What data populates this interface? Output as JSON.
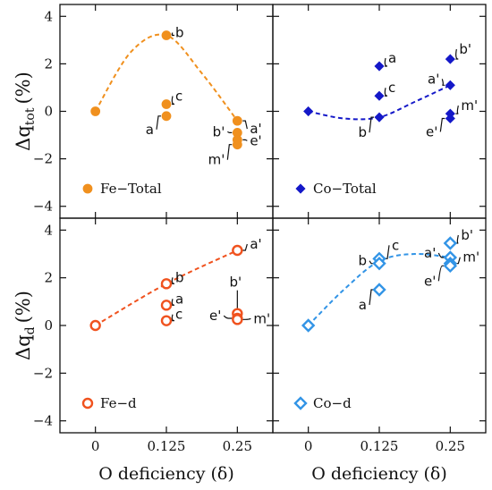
{
  "chart_data": {
    "type": "scatter",
    "xlabel": "O deficiency (δ)",
    "x_ticks": [
      "0",
      "0.125",
      "0.25"
    ],
    "x_tick_values": [
      0,
      0.125,
      0.25
    ],
    "xlim": [
      -0.0625,
      0.3125
    ],
    "rows": [
      {
        "ylabel_main": "Δq",
        "ylabel_sub": "tot",
        "ylabel_unit": "(%)",
        "ylim": [
          -4.5,
          4.5
        ],
        "y_ticks": [
          -4,
          -2,
          0,
          2,
          4
        ]
      },
      {
        "ylabel_main": "Δq",
        "ylabel_sub": "d",
        "ylabel_unit": "(%)",
        "ylim": [
          -4.5,
          4.5
        ],
        "y_ticks": [
          -4,
          -2,
          0,
          2,
          4
        ]
      }
    ],
    "panels": [
      {
        "id": "fe-total",
        "row": 0,
        "col": 0,
        "legend": "Fe−Total",
        "marker": "circle",
        "filled": true,
        "color": "#f0901e",
        "fit_curve": [
          [
            0,
            0
          ],
          [
            0.0625,
            2.5
          ],
          [
            0.125,
            3.2
          ],
          [
            0.1875,
            1.6
          ],
          [
            0.25,
            -0.4
          ]
        ],
        "points": [
          {
            "x": 0,
            "y": 0,
            "label": ""
          },
          {
            "x": 0.125,
            "y": 3.2,
            "label": "b"
          },
          {
            "x": 0.125,
            "y": 0.3,
            "label": "c"
          },
          {
            "x": 0.125,
            "y": -0.2,
            "label": "a"
          },
          {
            "x": 0.25,
            "y": -0.4,
            "label": "a'"
          },
          {
            "x": 0.25,
            "y": -0.9,
            "label": "b'"
          },
          {
            "x": 0.25,
            "y": -1.2,
            "label": "e'"
          },
          {
            "x": 0.25,
            "y": -1.4,
            "label": "m'"
          }
        ]
      },
      {
        "id": "co-total",
        "row": 0,
        "col": 1,
        "legend": "Co−Total",
        "marker": "diamond",
        "filled": true,
        "color": "#1418c8",
        "fit_curve": [
          [
            0,
            0
          ],
          [
            0.0625,
            -0.3
          ],
          [
            0.125,
            -0.25
          ],
          [
            0.1875,
            0.4
          ],
          [
            0.25,
            1.1
          ]
        ],
        "points": [
          {
            "x": 0,
            "y": 0,
            "label": ""
          },
          {
            "x": 0.125,
            "y": 1.9,
            "label": "a"
          },
          {
            "x": 0.125,
            "y": 0.65,
            "label": "c"
          },
          {
            "x": 0.125,
            "y": -0.25,
            "label": "b"
          },
          {
            "x": 0.25,
            "y": 2.2,
            "label": "b'"
          },
          {
            "x": 0.25,
            "y": 1.1,
            "label": "a'"
          },
          {
            "x": 0.25,
            "y": -0.1,
            "label": "m'"
          },
          {
            "x": 0.25,
            "y": -0.3,
            "label": "e'"
          }
        ]
      },
      {
        "id": "fe-d",
        "row": 1,
        "col": 0,
        "legend": "Fe−d",
        "marker": "circle",
        "filled": false,
        "color": "#f0521e",
        "fit_curve": [
          [
            0,
            0
          ],
          [
            0.125,
            1.75
          ],
          [
            0.25,
            3.15
          ]
        ],
        "points": [
          {
            "x": 0,
            "y": 0,
            "label": ""
          },
          {
            "x": 0.125,
            "y": 1.75,
            "label": "b"
          },
          {
            "x": 0.125,
            "y": 0.85,
            "label": "a"
          },
          {
            "x": 0.125,
            "y": 0.2,
            "label": "c"
          },
          {
            "x": 0.25,
            "y": 3.15,
            "label": "a'"
          },
          {
            "x": 0.25,
            "y": 0.5,
            "label": "b'"
          },
          {
            "x": 0.25,
            "y": 0.3,
            "label": "e'"
          },
          {
            "x": 0.25,
            "y": 0.25,
            "label": "m'"
          }
        ]
      },
      {
        "id": "co-d",
        "row": 1,
        "col": 1,
        "legend": "Co−d",
        "marker": "diamond",
        "filled": false,
        "color": "#3294e6",
        "fit_curve": [
          [
            0,
            0
          ],
          [
            0.0625,
            1.5
          ],
          [
            0.125,
            2.7
          ],
          [
            0.1875,
            3.0
          ],
          [
            0.25,
            2.85
          ]
        ],
        "points": [
          {
            "x": 0,
            "y": 0,
            "label": ""
          },
          {
            "x": 0.125,
            "y": 2.8,
            "label": "c"
          },
          {
            "x": 0.125,
            "y": 2.6,
            "label": "b"
          },
          {
            "x": 0.125,
            "y": 1.5,
            "label": "a"
          },
          {
            "x": 0.25,
            "y": 3.45,
            "label": "b'"
          },
          {
            "x": 0.25,
            "y": 2.85,
            "label": "a'"
          },
          {
            "x": 0.25,
            "y": 2.6,
            "label": "m'"
          },
          {
            "x": 0.25,
            "y": 2.5,
            "label": "e'"
          }
        ]
      }
    ]
  }
}
